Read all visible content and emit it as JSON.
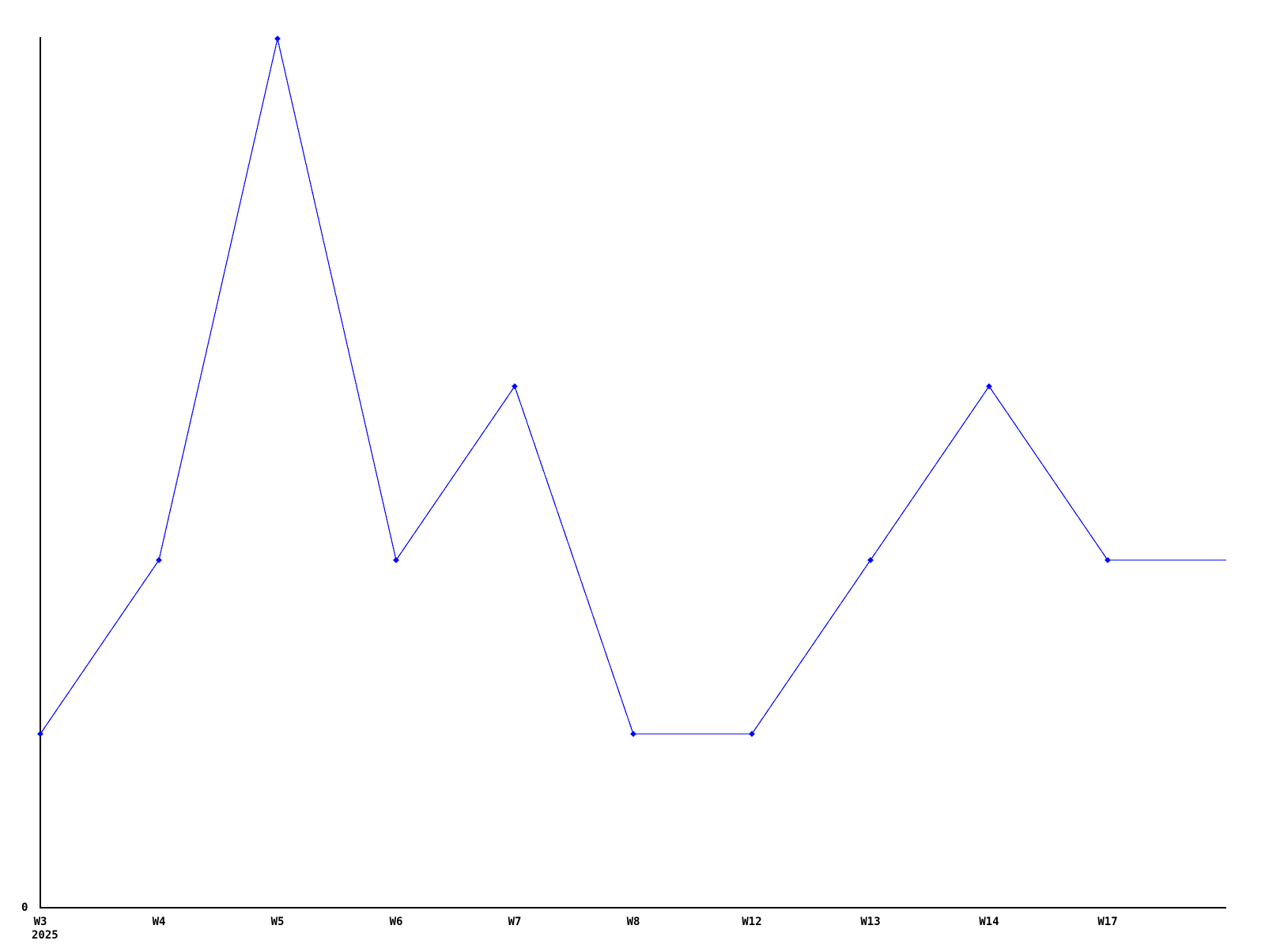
{
  "chart_data": {
    "type": "line",
    "title": "",
    "xlabel": "",
    "ylabel": "",
    "categories": [
      "W3",
      "W4",
      "W5",
      "W6",
      "W7",
      "W8",
      "W12",
      "W13",
      "W14",
      "W17"
    ],
    "values": [
      1,
      2,
      5,
      2,
      3,
      1,
      1,
      2,
      3,
      2
    ],
    "trailing_segment": {
      "value": 2,
      "has_marker": false,
      "has_label": false
    },
    "year_label": "2025",
    "y_tick_labels": [
      "0"
    ],
    "ylim": [
      0,
      5
    ],
    "grid": false,
    "legend": false,
    "marker": "diamond",
    "line_color": "#0000ff",
    "axis_color": "#000000",
    "label_color": "#000000",
    "background_color": "#ffffff"
  }
}
